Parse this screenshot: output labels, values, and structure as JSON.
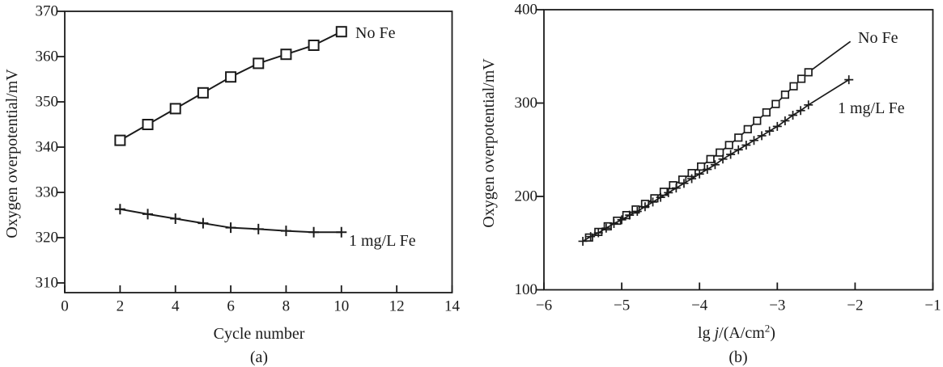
{
  "colors": {
    "ink": "#1b1b1b",
    "background": "#ffffff"
  },
  "chart_data": [
    {
      "type": "line",
      "panel": "a",
      "caption": "(a)",
      "xlabel": "Cycle number",
      "ylabel": "Oxygen overpotential/mV",
      "xlim": [
        0,
        14
      ],
      "ylim": [
        308,
        370
      ],
      "xticks": [
        0,
        2,
        4,
        6,
        8,
        10,
        12,
        14
      ],
      "yticks": [
        310,
        320,
        330,
        340,
        350,
        360,
        370
      ],
      "grid": false,
      "legend_position": "inline-annotations",
      "series": [
        {
          "name": "No Fe",
          "marker": "square",
          "x": [
            2,
            3,
            4,
            5,
            6,
            7,
            8,
            9,
            10
          ],
          "y": [
            341.5,
            345.0,
            348.5,
            352.0,
            355.5,
            358.5,
            360.5,
            362.5,
            365.5
          ]
        },
        {
          "name": "1 mg/L Fe",
          "marker": "plus",
          "x": [
            2,
            3,
            4,
            5,
            6,
            7,
            8,
            9,
            10
          ],
          "y": [
            326.3,
            325.2,
            324.2,
            323.2,
            322.2,
            321.9,
            321.5,
            321.2,
            321.2
          ]
        }
      ]
    },
    {
      "type": "scatter-line",
      "panel": "b",
      "caption": "(b)",
      "xlabel": "lg j/(A/cm2)",
      "xlabel_parts": {
        "prefix": "lg ",
        "current_symbol": "j",
        "unit_open": "/(A/cm",
        "exponent": "2",
        "unit_close": ")"
      },
      "ylabel": "Oxygen overpotential/mV",
      "xlim": [
        -6,
        -1
      ],
      "ylim": [
        100,
        400
      ],
      "xticks": [
        -6,
        -5,
        -4,
        -3,
        -2,
        -1
      ],
      "yticks": [
        100,
        200,
        300,
        400
      ],
      "grid": false,
      "legend_position": "inline-annotations",
      "series": [
        {
          "name": "No Fe",
          "marker": "square",
          "x": [
            -5.42,
            -5.3,
            -5.18,
            -5.06,
            -4.94,
            -4.82,
            -4.7,
            -4.58,
            -4.46,
            -4.34,
            -4.22,
            -4.1,
            -3.98,
            -3.86,
            -3.74,
            -3.62,
            -3.5,
            -3.38,
            -3.26,
            -3.14,
            -3.02,
            -2.9,
            -2.79,
            -2.69,
            -2.6
          ],
          "y": [
            156,
            162,
            168,
            174,
            180,
            186,
            192,
            198,
            205,
            212,
            218,
            225,
            232,
            240,
            247,
            255,
            263,
            272,
            281,
            290,
            299,
            309,
            318,
            326,
            333
          ],
          "fit_extension": {
            "x": [
              -2.6,
              -2.06
            ],
            "y": [
              333,
              366
            ]
          }
        },
        {
          "name": "1 mg/L Fe",
          "marker": "plus",
          "x": [
            -5.5,
            -5.4,
            -5.3,
            -5.2,
            -5.1,
            -5.0,
            -4.9,
            -4.8,
            -4.7,
            -4.6,
            -4.5,
            -4.4,
            -4.3,
            -4.2,
            -4.1,
            -4.0,
            -3.9,
            -3.8,
            -3.7,
            -3.6,
            -3.5,
            -3.4,
            -3.3,
            -3.2,
            -3.1,
            -3.0,
            -2.9,
            -2.8,
            -2.7,
            -2.6,
            -2.08
          ],
          "y": [
            152,
            157,
            161,
            166,
            171,
            175,
            180,
            184,
            189,
            194,
            199,
            204,
            209,
            214,
            219,
            224,
            229,
            234,
            240,
            245,
            250,
            255,
            260,
            265,
            270,
            275,
            281,
            287,
            292,
            298,
            325
          ]
        }
      ]
    }
  ]
}
